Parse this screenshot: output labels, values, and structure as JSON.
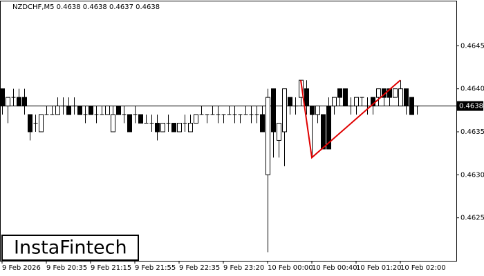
{
  "chart_data": {
    "type": "candlestick",
    "title": "NZDCHF,M5  0.4638 0.4638 0.4637 0.4638",
    "watermark": "InstaFintech",
    "categories": [
      "9 Feb 2026",
      null,
      null,
      null,
      null,
      null,
      null,
      null,
      "9 Feb 20:35",
      null,
      null,
      null,
      null,
      null,
      null,
      null,
      "9 Feb 21:15",
      null,
      null,
      null,
      null,
      null,
      null,
      null,
      "9 Feb 21:55",
      null,
      null,
      null,
      null,
      null,
      null,
      null,
      "9 Feb 22:35",
      null,
      null,
      null,
      null,
      null,
      null,
      null,
      "9 Feb 23:20",
      null,
      null,
      null,
      null,
      null,
      null,
      null,
      "10 Feb 00:00",
      null,
      null,
      null,
      null,
      null,
      null,
      null,
      "10 Feb 00:40",
      null,
      null,
      null,
      null,
      null,
      null,
      null,
      "10 Feb 01:20",
      null,
      null,
      null,
      null,
      null,
      null,
      null,
      "10 Feb 02:00",
      null,
      null,
      null
    ],
    "open": [
      0.464,
      0.4638,
      0.4639,
      0.4639,
      0.4639,
      0.4637,
      0.4636,
      0.4635,
      0.4637,
      0.4637,
      0.4637,
      0.4638,
      0.4638,
      0.4638,
      0.4638,
      0.4637,
      0.4638,
      0.4637,
      0.4637,
      0.4637,
      0.4635,
      0.4638,
      0.4637,
      0.4637,
      0.4637,
      0.4637,
      0.4636,
      0.4636,
      0.4636,
      0.4635,
      0.4636,
      0.4636,
      0.4635,
      0.4636,
      0.4635,
      0.4636,
      0.4637,
      0.4637,
      0.4637,
      0.4637,
      0.4637,
      0.4637,
      0.4637,
      0.4637,
      0.4637,
      0.4637,
      0.4637,
      0.4637,
      0.463,
      0.464,
      0.4634,
      0.4635,
      0.4639,
      0.4638,
      0.4639,
      0.464,
      0.4638,
      0.4637,
      0.4637,
      0.4638,
      0.4638,
      0.464,
      0.464,
      0.4638,
      0.4638,
      0.4639,
      0.4638,
      0.4639,
      0.4639,
      0.464,
      0.464,
      0.4639,
      0.4638,
      0.464,
      0.4639,
      0.4638
    ],
    "high": [
      0.464,
      0.4639,
      0.464,
      0.464,
      0.464,
      0.4637,
      0.4637,
      0.4637,
      0.4638,
      0.4638,
      0.4639,
      0.4639,
      0.4639,
      0.4639,
      0.4638,
      0.4638,
      0.4638,
      0.4638,
      0.4638,
      0.4638,
      0.4638,
      0.4638,
      0.4638,
      0.4637,
      0.4638,
      0.4637,
      0.4637,
      0.4637,
      0.4637,
      0.4636,
      0.4637,
      0.4636,
      0.4636,
      0.4637,
      0.4637,
      0.4637,
      0.4638,
      0.4637,
      0.4638,
      0.4638,
      0.4637,
      0.4638,
      0.4638,
      0.4637,
      0.4638,
      0.4638,
      0.4638,
      0.4638,
      0.464,
      0.464,
      0.4636,
      0.464,
      0.4639,
      0.4639,
      0.4641,
      0.4641,
      0.4638,
      0.4638,
      0.4637,
      0.4639,
      0.4639,
      0.464,
      0.464,
      0.4639,
      0.4639,
      0.4639,
      0.4639,
      0.4639,
      0.464,
      0.464,
      0.464,
      0.464,
      0.4641,
      0.464,
      0.4639,
      0.4638
    ],
    "low": [
      0.4637,
      0.4636,
      0.4638,
      0.4638,
      0.4637,
      0.4634,
      0.4635,
      0.4635,
      0.4637,
      0.4637,
      0.4637,
      0.4637,
      0.4637,
      0.4637,
      0.4637,
      0.4636,
      0.4637,
      0.4636,
      0.4637,
      0.4637,
      0.4635,
      0.4637,
      0.4636,
      0.4635,
      0.4636,
      0.4636,
      0.4636,
      0.4635,
      0.4634,
      0.4635,
      0.4635,
      0.4635,
      0.4635,
      0.4635,
      0.4635,
      0.4636,
      0.4637,
      0.4636,
      0.4637,
      0.4636,
      0.4636,
      0.4637,
      0.4636,
      0.4636,
      0.4637,
      0.4636,
      0.4636,
      0.4635,
      0.4621,
      0.4632,
      0.4632,
      0.4631,
      0.4637,
      0.4637,
      0.4638,
      0.4637,
      0.4632,
      0.4636,
      0.4633,
      0.4633,
      0.4637,
      0.4638,
      0.4638,
      0.4637,
      0.4637,
      0.4638,
      0.4637,
      0.4637,
      0.4638,
      0.4638,
      0.4638,
      0.4639,
      0.4638,
      0.4637,
      0.4637,
      0.4637
    ],
    "close": [
      0.4638,
      0.4639,
      0.4639,
      0.4638,
      0.4638,
      0.4635,
      0.4636,
      0.4637,
      0.4637,
      0.4637,
      0.4638,
      0.4638,
      0.4637,
      0.4638,
      0.4637,
      0.4637,
      0.4637,
      0.4637,
      0.4637,
      0.4638,
      0.4637,
      0.4637,
      0.4637,
      0.4635,
      0.4637,
      0.4636,
      0.4636,
      0.4636,
      0.4635,
      0.4636,
      0.4636,
      0.4635,
      0.4636,
      0.4636,
      0.4636,
      0.4637,
      0.4637,
      0.4637,
      0.4637,
      0.4637,
      0.4637,
      0.4637,
      0.4637,
      0.4637,
      0.4637,
      0.4637,
      0.4637,
      0.4635,
      0.4639,
      0.4635,
      0.4636,
      0.464,
      0.4638,
      0.4638,
      0.4641,
      0.4638,
      0.4637,
      0.4638,
      0.4633,
      0.4633,
      0.4639,
      0.4639,
      0.4638,
      0.4638,
      0.4639,
      0.4639,
      0.4638,
      0.4638,
      0.464,
      0.4639,
      0.4639,
      0.464,
      0.464,
      0.4638,
      0.4637,
      0.4638
    ],
    "last_price": 0.4638,
    "pattern": {
      "color": "#e00000",
      "x": [
        54,
        56,
        72
      ],
      "values": [
        0.4641,
        0.4632,
        0.4641
      ]
    },
    "ylim": [
      0.462,
      0.465
    ],
    "yticks": [
      0.4625,
      {
        "value": 0.463,
        "label": "0.4630"
      },
      0.4635,
      {
        "value": 0.464,
        "label": "0.4640"
      },
      0.4645
    ]
  }
}
